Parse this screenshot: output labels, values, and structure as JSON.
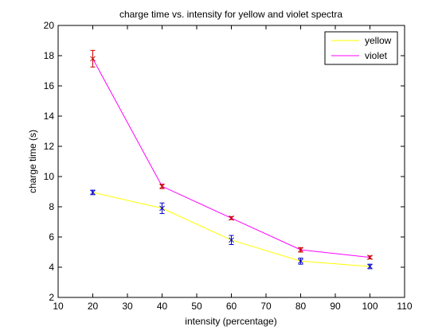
{
  "chart_data": {
    "type": "line",
    "title": "charge time vs. intensity for yellow and violet spectra",
    "xlabel": "intensity (percentage)",
    "ylabel": "charge time (s)",
    "xlim": [
      10,
      110
    ],
    "ylim": [
      2,
      20
    ],
    "xticks": [
      10,
      20,
      30,
      40,
      50,
      60,
      70,
      80,
      90,
      100,
      110
    ],
    "yticks": [
      2,
      4,
      6,
      8,
      10,
      12,
      14,
      16,
      18,
      20
    ],
    "grid": false,
    "legend_position": "top-right",
    "x": [
      20,
      40,
      60,
      80,
      100
    ],
    "series": [
      {
        "name": "yellow",
        "color": "#ffff00",
        "marker_color": "#0000c8",
        "values": [
          8.95,
          7.9,
          5.8,
          4.4,
          4.05
        ],
        "errors": [
          0.15,
          0.35,
          0.3,
          0.2,
          0.15
        ]
      },
      {
        "name": "violet",
        "color": "#ff00ff",
        "marker_color": "#c80000",
        "values": [
          17.8,
          9.35,
          7.25,
          5.15,
          4.65
        ],
        "errors": [
          0.55,
          0.15,
          0.1,
          0.15,
          0.1
        ]
      }
    ]
  }
}
